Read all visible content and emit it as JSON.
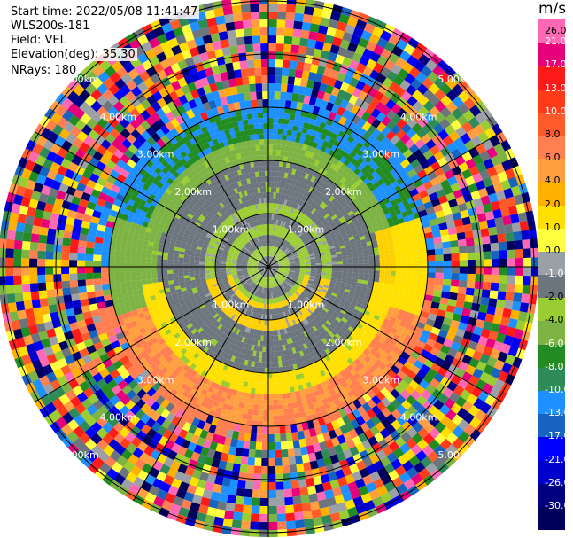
{
  "info": {
    "start_time": "Start time: 2022/05/08 11:41:47",
    "instrument": "WLS200s-181",
    "field": "Field: VEL",
    "elevation": "Elevation(deg): 35.30",
    "nrays": "NRays: 180"
  },
  "colorbar": {
    "unit": "m/s",
    "ticks": [
      "26.0",
      "21.0",
      "17.0",
      "13.0",
      "10.0",
      "8.0",
      "6.0",
      "4.0",
      "2.0",
      "1.0",
      "0.0",
      "-1.0",
      "-2.0",
      "-4.0",
      "-6.0",
      "-8.0",
      "-10.0",
      "-13.0",
      "-17.0",
      "-21.0",
      "-26.0",
      "-30.0"
    ],
    "colors": [
      "#ff69b4",
      "#e6007a",
      "#ff1a1a",
      "#ff3b1a",
      "#ff5a2a",
      "#ff7f50",
      "#ff9f40",
      "#ffb000",
      "#ffe000",
      "#ffff40",
      "#9aa0a6",
      "#6c757d",
      "#9acd32",
      "#7cb342",
      "#228b22",
      "#2e8b57",
      "#1e90ff",
      "#1664c0",
      "#0000ff",
      "#0000cd",
      "#000080",
      "#00005a"
    ]
  },
  "range_labels": [
    "1.00km",
    "2.00km",
    "3.00km",
    "4.00km",
    "5.00km"
  ],
  "chart_data": {
    "type": "heatmap",
    "projection": "PPI (polar)",
    "field": "VEL",
    "units": "m/s",
    "nrays": 180,
    "range_rings_km": [
      1,
      2,
      3,
      4,
      5
    ],
    "max_range_km": 5.0,
    "clim": [
      -30.0,
      26.0
    ],
    "bands": [
      {
        "range_km": [
          0.0,
          1.3
        ],
        "dominant": "gray / green",
        "value_ms": [
          -2.0,
          1.0
        ]
      },
      {
        "range_km": [
          1.3,
          2.3
        ],
        "north": "green",
        "south": "yellow",
        "value_ms": [
          -4.0,
          4.0
        ]
      },
      {
        "range_km": [
          2.3,
          3.0
        ],
        "north": "blue",
        "south": "orange",
        "value_ms": [
          -10.0,
          8.0
        ]
      },
      {
        "range_km": [
          3.0,
          5.0
        ],
        "dominant": "noise",
        "value_ms": [
          -30.0,
          26.0
        ]
      }
    ]
  }
}
